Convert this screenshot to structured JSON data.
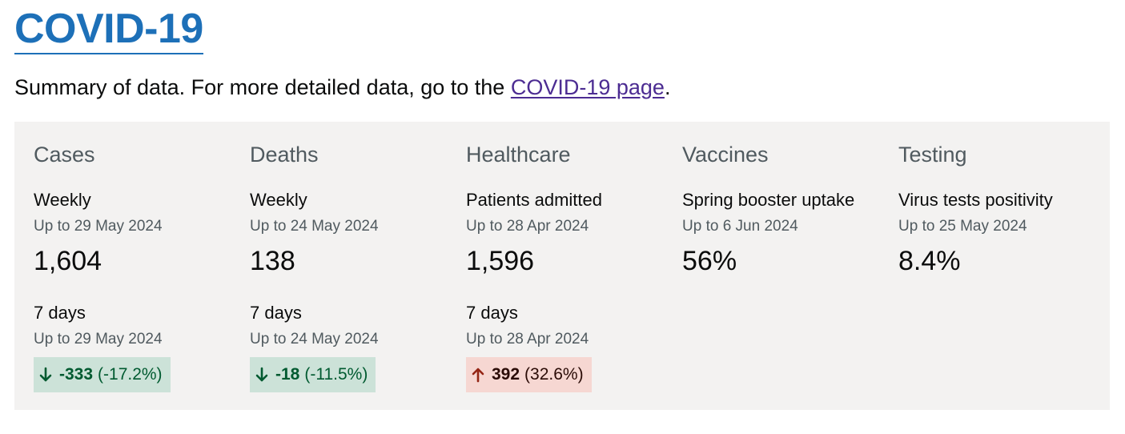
{
  "page": {
    "title": "COVID-19",
    "summary_text": "Summary of data. For more detailed data, go to the ",
    "summary_link": "COVID-19 page",
    "summary_end": "."
  },
  "columns": [
    {
      "heading": "Cases",
      "metric_label": "Weekly",
      "metric_date": "Up to 29 May 2024",
      "metric_value": "1,604",
      "change_label": "7 days",
      "change_date": "Up to 29 May 2024",
      "change_value": "-333",
      "change_percent": "(-17.2%)",
      "change_direction": "down"
    },
    {
      "heading": "Deaths",
      "metric_label": "Weekly",
      "metric_date": "Up to 24 May 2024",
      "metric_value": "138",
      "change_label": "7 days",
      "change_date": "Up to 24 May 2024",
      "change_value": "-18",
      "change_percent": "(-11.5%)",
      "change_direction": "down"
    },
    {
      "heading": "Healthcare",
      "metric_label": "Patients admitted",
      "metric_date": "Up to 28 Apr 2024",
      "metric_value": "1,596",
      "change_label": "7 days",
      "change_date": "Up to 28 Apr 2024",
      "change_value": "392",
      "change_percent": "(32.6%)",
      "change_direction": "up"
    },
    {
      "heading": "Vaccines",
      "metric_label": "Spring booster uptake",
      "metric_date": "Up to 6 Jun 2024",
      "metric_value": "56%"
    },
    {
      "heading": "Testing",
      "metric_label": "Virus tests positivity",
      "metric_date": "Up to 25 May 2024",
      "metric_value": "8.4%"
    }
  ],
  "colors": {
    "title": "#1d70b8",
    "link": "#4c2c92",
    "panel_bg": "#f3f2f1",
    "down_bg": "#cce2d8",
    "down_fg": "#005a30",
    "up_bg": "#f6d7d2",
    "up_arrow": "#942514"
  }
}
